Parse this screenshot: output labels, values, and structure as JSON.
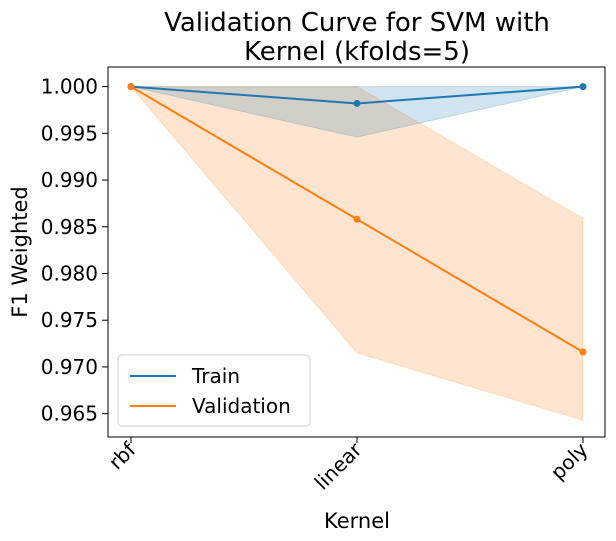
{
  "chart_data": {
    "type": "line",
    "title_lines": [
      "Validation Curve for SVM with",
      "Kernel (kfolds=5)"
    ],
    "xlabel": "Kernel",
    "ylabel": "F1 Weighted",
    "categories": [
      "rbf",
      "linear",
      "poly"
    ],
    "ylim": [
      0.9625,
      1.0021
    ],
    "yticks": [
      0.965,
      0.97,
      0.975,
      0.98,
      0.985,
      0.99,
      0.995,
      1.0
    ],
    "ytick_labels": [
      "0.965",
      "0.970",
      "0.975",
      "0.980",
      "0.985",
      "0.990",
      "0.995",
      "1.000"
    ],
    "grid": false,
    "legend_position": "lower-left",
    "series": [
      {
        "name": "Train",
        "color": "#1f77b4",
        "values": [
          1.0,
          0.9982,
          1.0
        ],
        "band_lower": [
          1.0,
          0.9946,
          1.0
        ],
        "band_upper": [
          1.0,
          1.0,
          1.0
        ]
      },
      {
        "name": "Validation",
        "color": "#ff7f0e",
        "values": [
          1.0,
          0.9858,
          0.9716
        ],
        "band_lower": [
          1.0,
          0.9715,
          0.9643
        ],
        "band_upper": [
          1.0,
          1.0,
          0.9859
        ]
      }
    ]
  }
}
